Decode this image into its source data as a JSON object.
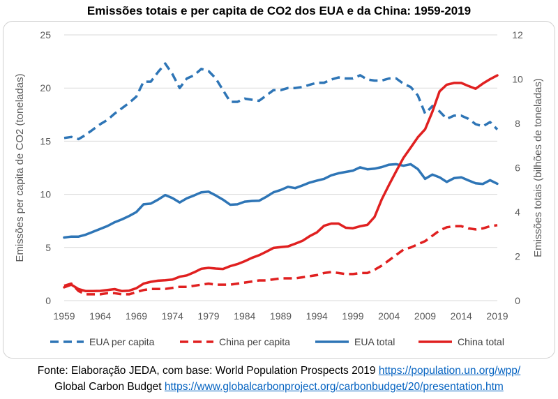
{
  "title": "Emissões totais e per capita de CO2 dos EUA e da China: 1959-2019",
  "footer": {
    "line1_text": "Fonte: Elaboração JEDA, com base: World Population Prospects 2019 ",
    "line1_link": "https://population.un.org/wpp/",
    "line2_text": "Global Carbon Budget ",
    "line2_link": "https://www.globalcarbonproject.org/carbonbudget/20/presentation.htm"
  },
  "chart_data": {
    "type": "line",
    "title": "Emissões totais e per capita de CO2 dos EUA e da China: 1959-2019",
    "xlabel": "",
    "ylabel": "Emissões per capita de CO2 (toneladas)",
    "y2label": "Emissões totais (bilhões de toneladas)",
    "x": [
      1959,
      1960,
      1961,
      1962,
      1963,
      1964,
      1965,
      1966,
      1967,
      1968,
      1969,
      1970,
      1971,
      1972,
      1973,
      1974,
      1975,
      1976,
      1977,
      1978,
      1979,
      1980,
      1981,
      1982,
      1983,
      1984,
      1985,
      1986,
      1987,
      1988,
      1989,
      1990,
      1991,
      1992,
      1993,
      1994,
      1995,
      1996,
      1997,
      1998,
      1999,
      2000,
      2001,
      2002,
      2003,
      2004,
      2005,
      2006,
      2007,
      2008,
      2009,
      2010,
      2011,
      2012,
      2013,
      2014,
      2015,
      2016,
      2017,
      2018,
      2019
    ],
    "xticks": [
      "1959",
      "1964",
      "1969",
      "1974",
      "1979",
      "1984",
      "1989",
      "1994",
      "1999",
      "2004",
      "2009",
      "2014",
      "2019"
    ],
    "ylim": [
      0,
      25
    ],
    "yticks": [
      "0",
      "5",
      "10",
      "15",
      "20",
      "25"
    ],
    "y2lim": [
      0,
      12
    ],
    "y2ticks": [
      "0",
      "2",
      "4",
      "6",
      "8",
      "10",
      "12"
    ],
    "legend_position": "bottom",
    "grid": true,
    "series": [
      {
        "name": "EUA per capita",
        "axis": "left",
        "color": "#2e75b6",
        "dash": true,
        "values": [
          15.3,
          15.4,
          15.2,
          15.6,
          16.1,
          16.6,
          17.0,
          17.6,
          18.1,
          18.6,
          19.2,
          20.6,
          20.6,
          21.5,
          22.3,
          21.3,
          20.0,
          20.9,
          21.2,
          21.8,
          21.6,
          20.9,
          19.8,
          18.7,
          18.7,
          19.0,
          18.9,
          18.8,
          19.3,
          19.8,
          19.8,
          20.0,
          20.0,
          20.1,
          20.3,
          20.5,
          20.5,
          20.8,
          21.0,
          20.9,
          20.9,
          21.2,
          20.8,
          20.7,
          20.7,
          20.9,
          20.9,
          20.4,
          20.1,
          19.3,
          17.6,
          18.3,
          17.8,
          17.1,
          17.4,
          17.4,
          17.1,
          16.6,
          16.4,
          16.8,
          16.1
        ]
      },
      {
        "name": "China per capita",
        "axis": "left",
        "color": "#e02020",
        "dash": true,
        "values": [
          1.4,
          1.6,
          0.9,
          0.6,
          0.6,
          0.6,
          0.7,
          0.7,
          0.6,
          0.6,
          0.8,
          1.0,
          1.1,
          1.1,
          1.1,
          1.2,
          1.3,
          1.3,
          1.4,
          1.5,
          1.6,
          1.5,
          1.5,
          1.5,
          1.6,
          1.7,
          1.8,
          1.9,
          1.9,
          2.0,
          2.1,
          2.1,
          2.1,
          2.2,
          2.3,
          2.4,
          2.6,
          2.7,
          2.6,
          2.5,
          2.5,
          2.6,
          2.6,
          2.9,
          3.3,
          3.8,
          4.3,
          4.8,
          5.0,
          5.3,
          5.6,
          6.1,
          6.6,
          6.9,
          7.0,
          7.0,
          6.8,
          6.7,
          6.8,
          7.0,
          7.1
        ]
      },
      {
        "name": "EUA total",
        "axis": "right",
        "color": "#2e75b6",
        "dash": false,
        "values": [
          2.85,
          2.89,
          2.89,
          2.98,
          3.11,
          3.24,
          3.37,
          3.54,
          3.67,
          3.82,
          4.0,
          4.35,
          4.38,
          4.56,
          4.77,
          4.63,
          4.43,
          4.62,
          4.75,
          4.89,
          4.92,
          4.75,
          4.56,
          4.33,
          4.35,
          4.47,
          4.5,
          4.51,
          4.69,
          4.89,
          5.0,
          5.14,
          5.08,
          5.2,
          5.33,
          5.42,
          5.5,
          5.66,
          5.75,
          5.81,
          5.87,
          6.02,
          5.93,
          5.96,
          6.03,
          6.14,
          6.16,
          6.09,
          6.16,
          5.94,
          5.5,
          5.69,
          5.57,
          5.36,
          5.53,
          5.57,
          5.43,
          5.3,
          5.27,
          5.44,
          5.28
        ]
      },
      {
        "name": "China total",
        "axis": "right",
        "color": "#e02020",
        "dash": false,
        "values": [
          0.6,
          0.72,
          0.52,
          0.43,
          0.43,
          0.44,
          0.48,
          0.52,
          0.43,
          0.45,
          0.56,
          0.77,
          0.85,
          0.9,
          0.92,
          0.95,
          1.08,
          1.14,
          1.28,
          1.44,
          1.48,
          1.45,
          1.43,
          1.56,
          1.65,
          1.78,
          1.93,
          2.05,
          2.21,
          2.38,
          2.42,
          2.45,
          2.57,
          2.7,
          2.91,
          3.08,
          3.38,
          3.48,
          3.48,
          3.29,
          3.27,
          3.36,
          3.42,
          3.78,
          4.58,
          5.23,
          5.85,
          6.45,
          6.91,
          7.38,
          7.74,
          8.53,
          9.45,
          9.75,
          9.83,
          9.83,
          9.69,
          9.57,
          9.8,
          10.0,
          10.17
        ]
      }
    ]
  }
}
